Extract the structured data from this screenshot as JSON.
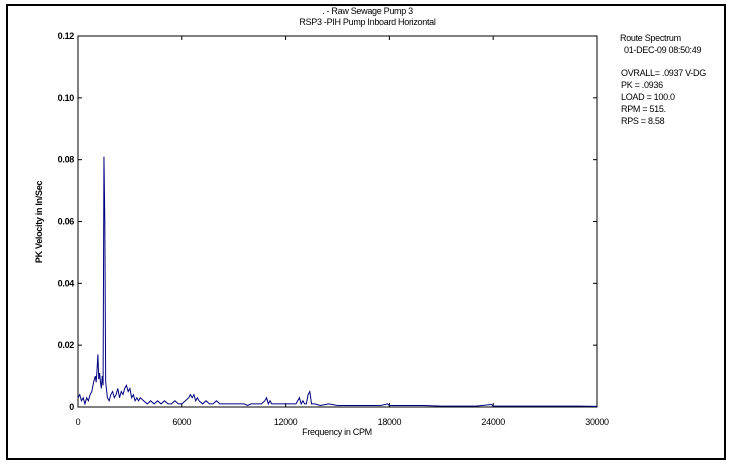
{
  "chart_data": {
    "type": "line",
    "title_line1": ". - Raw Sewage Pump 3",
    "title_line2": "RSP3 -PIH Pump Inboard Horizontal",
    "xlabel": "Frequency in CPM",
    "ylabel": "PK Velocity in In/Sec",
    "xlim": [
      0,
      30000
    ],
    "ylim": [
      0,
      0.12
    ],
    "x_ticks": [
      0,
      6000,
      12000,
      18000,
      24000,
      30000
    ],
    "x_tick_labels": [
      "0",
      "6000",
      "12000",
      "18000",
      "24000",
      "30000"
    ],
    "y_ticks": [
      0,
      0.02,
      0.04,
      0.06,
      0.08,
      0.1,
      0.12
    ],
    "y_tick_labels": [
      "0",
      "0.02",
      "0.04",
      "0.06",
      "0.08",
      "0.10",
      "0.12"
    ],
    "grid": false,
    "line_color": "#000080",
    "series": [
      {
        "points": [
          [
            0,
            0.003
          ],
          [
            100,
            0.004
          ],
          [
            200,
            0.002
          ],
          [
            300,
            0.003
          ],
          [
            400,
            0.001
          ],
          [
            500,
            0.003
          ],
          [
            600,
            0.002
          ],
          [
            700,
            0.004
          ],
          [
            800,
            0.005
          ],
          [
            900,
            0.008
          ],
          [
            1000,
            0.01
          ],
          [
            1050,
            0.008
          ],
          [
            1100,
            0.012
          ],
          [
            1150,
            0.017
          ],
          [
            1200,
            0.009
          ],
          [
            1250,
            0.011
          ],
          [
            1300,
            0.008
          ],
          [
            1350,
            0.006
          ],
          [
            1400,
            0.01
          ],
          [
            1450,
            0.007
          ],
          [
            1500,
            0.081
          ],
          [
            1550,
            0.06
          ],
          [
            1600,
            0.008
          ],
          [
            1700,
            0.003
          ],
          [
            1800,
            0.002
          ],
          [
            1900,
            0.004
          ],
          [
            2000,
            0.005
          ],
          [
            2100,
            0.003
          ],
          [
            2200,
            0.004
          ],
          [
            2300,
            0.006
          ],
          [
            2400,
            0.003
          ],
          [
            2500,
            0.005
          ],
          [
            2600,
            0.004
          ],
          [
            2700,
            0.006
          ],
          [
            2800,
            0.007
          ],
          [
            2900,
            0.005
          ],
          [
            3000,
            0.006
          ],
          [
            3100,
            0.003
          ],
          [
            3200,
            0.004
          ],
          [
            3300,
            0.002
          ],
          [
            3400,
            0.003
          ],
          [
            3500,
            0.002
          ],
          [
            3600,
            0.003
          ],
          [
            3800,
            0.002
          ],
          [
            4000,
            0.001
          ],
          [
            4200,
            0.002
          ],
          [
            4400,
            0.001
          ],
          [
            4600,
            0.002
          ],
          [
            4800,
            0.001
          ],
          [
            5000,
            0.002
          ],
          [
            5200,
            0.001
          ],
          [
            5400,
            0.001
          ],
          [
            5600,
            0.002
          ],
          [
            5800,
            0.001
          ],
          [
            6000,
            0.001
          ],
          [
            6200,
            0.002
          ],
          [
            6400,
            0.003
          ],
          [
            6500,
            0.004
          ],
          [
            6600,
            0.003
          ],
          [
            6700,
            0.004
          ],
          [
            6800,
            0.002
          ],
          [
            6900,
            0.003
          ],
          [
            7000,
            0.002
          ],
          [
            7200,
            0.001
          ],
          [
            7400,
            0.002
          ],
          [
            7600,
            0.001
          ],
          [
            7800,
            0.001
          ],
          [
            8000,
            0.002
          ],
          [
            8200,
            0.001
          ],
          [
            8400,
            0.001
          ],
          [
            8600,
            0.001
          ],
          [
            8800,
            0.001
          ],
          [
            9000,
            0.001
          ],
          [
            9200,
            0.001
          ],
          [
            9400,
            0.001
          ],
          [
            9600,
            0.001
          ],
          [
            9800,
            0.0005
          ],
          [
            10000,
            0.001
          ],
          [
            10200,
            0.001
          ],
          [
            10400,
            0.001
          ],
          [
            10600,
            0.001
          ],
          [
            10800,
            0.002
          ],
          [
            10900,
            0.003
          ],
          [
            11000,
            0.001
          ],
          [
            11100,
            0.002
          ],
          [
            11200,
            0.001
          ],
          [
            11400,
            0.001
          ],
          [
            11600,
            0.001
          ],
          [
            11800,
            0.001
          ],
          [
            12000,
            0.001
          ],
          [
            12200,
            0.001
          ],
          [
            12400,
            0.001
          ],
          [
            12600,
            0.001
          ],
          [
            12800,
            0.003
          ],
          [
            12900,
            0.001
          ],
          [
            13000,
            0.002
          ],
          [
            13100,
            0.001
          ],
          [
            13200,
            0.001
          ],
          [
            13300,
            0.004
          ],
          [
            13400,
            0.005
          ],
          [
            13500,
            0.001
          ],
          [
            13700,
            0.001
          ],
          [
            14000,
            0.0005
          ],
          [
            14500,
            0.001
          ],
          [
            15000,
            0.0005
          ],
          [
            15500,
            0.0005
          ],
          [
            16000,
            0.0005
          ],
          [
            16500,
            0.0005
          ],
          [
            17000,
            0.0005
          ],
          [
            17500,
            0.0005
          ],
          [
            17900,
            0.001
          ],
          [
            18000,
            0.0005
          ],
          [
            18500,
            0.0005
          ],
          [
            19000,
            0.0005
          ],
          [
            20000,
            0.0005
          ],
          [
            21000,
            0.0003
          ],
          [
            22000,
            0.0003
          ],
          [
            23000,
            0.0003
          ],
          [
            23900,
            0.0008
          ],
          [
            24000,
            0.0003
          ],
          [
            25000,
            0.0003
          ],
          [
            26000,
            0.0003
          ],
          [
            27000,
            0.0003
          ],
          [
            28000,
            0.0003
          ],
          [
            29000,
            0.0003
          ],
          [
            30000,
            0.0002
          ]
        ]
      }
    ]
  },
  "info_panel": {
    "line1": "Route Spectrum",
    "line2": "01-DEC-09 08:50:49",
    "line3": "OVRALL= .0937 V-DG",
    "line4": "PK = .0936",
    "line5": "LOAD = 100.0",
    "line6": "RPM = 515.",
    "line7": "RPS = 8.58"
  }
}
